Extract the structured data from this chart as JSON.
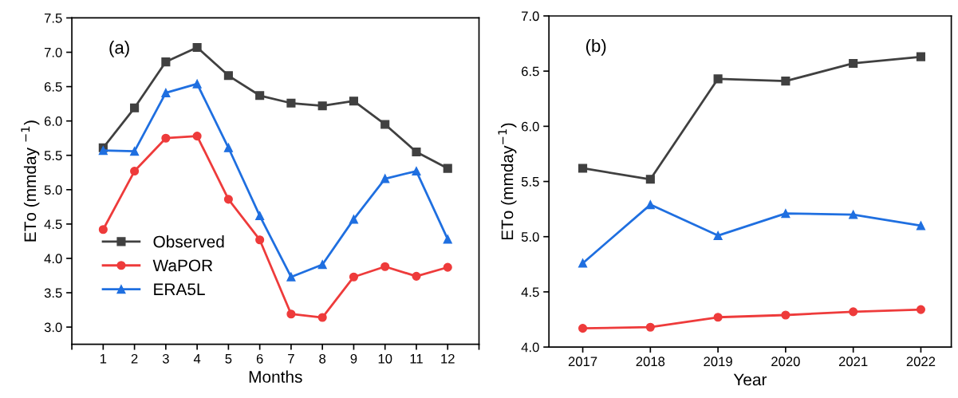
{
  "chart_data": [
    {
      "type": "line",
      "xlabel": "Months",
      "ylabel": "ETo (mmday $^{−1}$)",
      "annotations": [
        "(a)"
      ],
      "x": [
        1,
        2,
        3,
        4,
        5,
        6,
        7,
        8,
        9,
        10,
        11,
        12
      ],
      "xlim": [
        0,
        13
      ],
      "xticks": [
        {
          "value": 0,
          "label": null
        },
        1,
        2,
        3,
        4,
        5,
        6,
        7,
        8,
        9,
        10,
        11,
        12,
        {
          "value": 13,
          "label": null
        }
      ],
      "ylim": [
        2.75,
        7.5
      ],
      "yticks": [
        {
          "value": 3,
          "label": "3.0"
        },
        3.5,
        {
          "value": 4,
          "label": "4.0"
        },
        4.5,
        {
          "value": 5,
          "label": "5.0"
        },
        5.5,
        {
          "value": 6,
          "label": "6.0"
        },
        6.5,
        {
          "value": 7,
          "label": "7.0"
        },
        7.5
      ],
      "grid": false,
      "legend": "bottom left",
      "series": [
        {
          "name": "Observed",
          "color": "#404040",
          "marker": "square",
          "values": [
            5.61,
            6.19,
            6.86,
            7.07,
            6.66,
            6.37,
            6.26,
            6.22,
            6.29,
            5.95,
            5.55,
            5.31
          ]
        },
        {
          "name": "WaPOR",
          "color": "#ee3b3b",
          "marker": "circle",
          "values": [
            4.42,
            5.27,
            5.75,
            5.78,
            4.86,
            4.27,
            3.19,
            3.14,
            3.73,
            3.88,
            3.74,
            3.87
          ]
        },
        {
          "name": "ERA5L",
          "color": "#1f6fe0",
          "marker": "triangle",
          "values": [
            5.57,
            5.56,
            6.41,
            6.54,
            5.61,
            4.62,
            3.73,
            3.91,
            4.57,
            5.16,
            5.27,
            4.28
          ]
        }
      ]
    },
    {
      "type": "line",
      "xlabel": "Year",
      "ylabel": "ETo (mmday$^{−1}$)",
      "annotations": [
        "(b)"
      ],
      "x": [
        2017,
        2018,
        2019,
        2020,
        2021,
        2022
      ],
      "xlim": [
        2016.5,
        2022.45
      ],
      "xticks": [
        2017,
        2018,
        2019,
        2020,
        2021,
        2022
      ],
      "ylim": [
        4.0,
        7.0
      ],
      "yticks": [
        {
          "value": 4,
          "label": "4.0"
        },
        4.5,
        {
          "value": 5,
          "label": "5.0"
        },
        5.5,
        {
          "value": 6,
          "label": "6.0"
        },
        6.5,
        {
          "value": 7,
          "label": "7.0"
        }
      ],
      "grid": false,
      "series": [
        {
          "color": "#404040",
          "marker": "square",
          "values": [
            5.62,
            5.52,
            6.43,
            6.41,
            6.57,
            6.63
          ]
        },
        {
          "color": "#ee3b3b",
          "marker": "circle",
          "values": [
            4.17,
            4.18,
            4.27,
            4.29,
            4.32,
            4.34
          ]
        },
        {
          "color": "#1f6fe0",
          "marker": "triangle",
          "values": [
            4.76,
            5.29,
            5.01,
            5.21,
            5.2,
            5.1
          ]
        }
      ]
    }
  ]
}
